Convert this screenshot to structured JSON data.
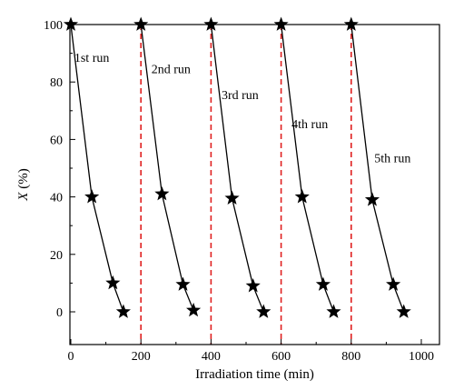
{
  "chart_data": {
    "type": "line",
    "title": "",
    "xlabel": "Irradiation time (min)",
    "ylabel_italic": "X",
    "ylabel_rest": " (%)",
    "xlim": [
      0,
      1000
    ],
    "ylim": [
      0,
      100
    ],
    "x_ticks": [
      0,
      200,
      400,
      600,
      800,
      1000
    ],
    "y_ticks": [
      0,
      20,
      40,
      60,
      80,
      100
    ],
    "grid": false,
    "marker": "star",
    "line_color": "#000000",
    "divider_color": "#e02020",
    "dividers": [
      200,
      400,
      600,
      800
    ],
    "series": [
      {
        "name": "1st run",
        "x": [
          0,
          60,
          120,
          150
        ],
        "y": [
          100,
          40,
          10,
          0
        ]
      },
      {
        "name": "2nd run",
        "x": [
          200,
          260,
          320,
          350
        ],
        "y": [
          100,
          41,
          9.5,
          0.5
        ]
      },
      {
        "name": "3rd run",
        "x": [
          400,
          460,
          520,
          550
        ],
        "y": [
          100,
          39.5,
          9,
          0
        ]
      },
      {
        "name": "4th run",
        "x": [
          600,
          660,
          720,
          750
        ],
        "y": [
          100,
          40,
          9.5,
          0
        ]
      },
      {
        "name": "5th run",
        "x": [
          800,
          860,
          920,
          950
        ],
        "y": [
          100,
          39,
          9.5,
          0
        ]
      }
    ],
    "run_label_positions": [
      {
        "x": 10,
        "y": 87
      },
      {
        "x": 230,
        "y": 83
      },
      {
        "x": 430,
        "y": 74
      },
      {
        "x": 630,
        "y": 64
      },
      {
        "x": 866,
        "y": 52
      }
    ]
  }
}
